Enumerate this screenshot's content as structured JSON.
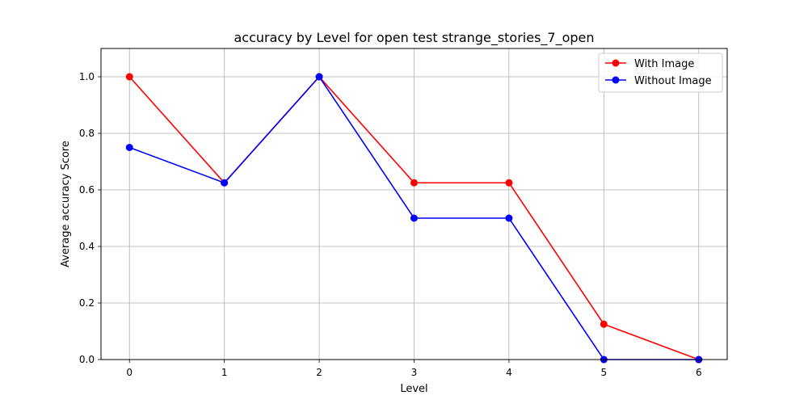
{
  "chart_data": {
    "type": "line",
    "title": "accuracy by Level for open test strange_stories_7_open",
    "xlabel": "Level",
    "ylabel": "Average accuracy Score",
    "x": [
      0,
      1,
      2,
      3,
      4,
      5,
      6
    ],
    "x_tick_labels": [
      "0",
      "1",
      "2",
      "3",
      "4",
      "5",
      "6"
    ],
    "y_tick_labels": [
      "0.0",
      "0.2",
      "0.4",
      "0.6",
      "0.8",
      "1.0"
    ],
    "xlim": [
      -0.3,
      6.3
    ],
    "ylim": [
      0,
      1.1
    ],
    "grid": true,
    "legend_position": "top-right",
    "series": [
      {
        "name": "With Image",
        "color": "#ff0000",
        "marker": "circle",
        "values": [
          1.0,
          0.625,
          1.0,
          0.625,
          0.625,
          0.125,
          0.0
        ]
      },
      {
        "name": "Without Image",
        "color": "#0000ff",
        "marker": "circle",
        "values": [
          0.75,
          0.625,
          1.0,
          0.5,
          0.5,
          0.0,
          0.0
        ]
      }
    ]
  }
}
